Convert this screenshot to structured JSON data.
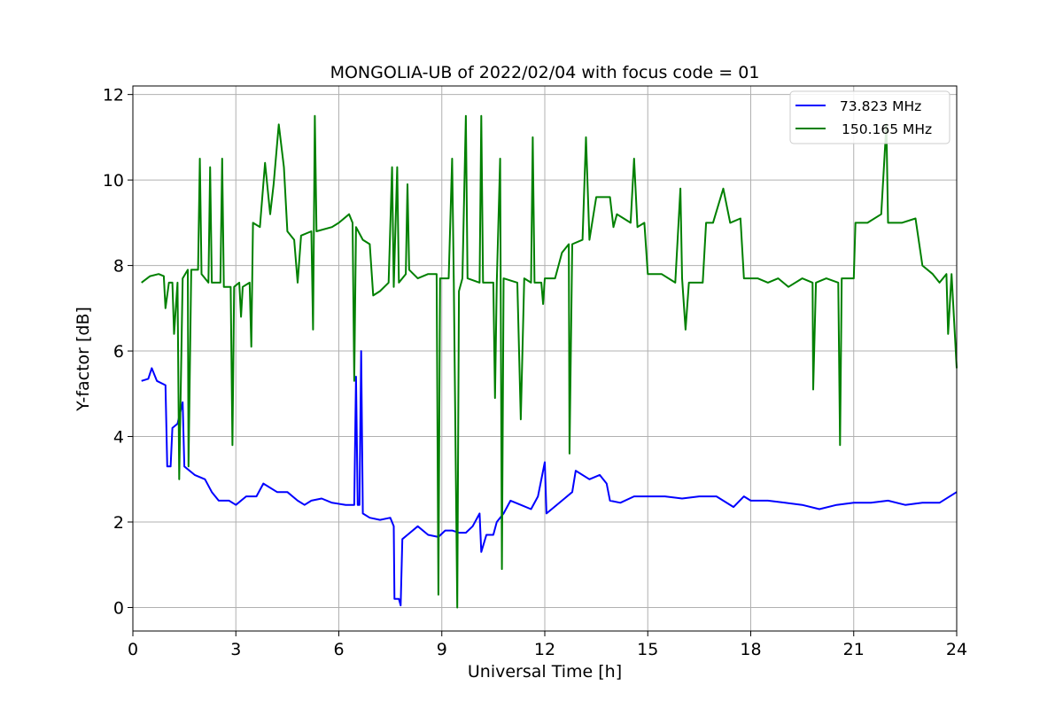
{
  "chart_data": {
    "type": "line",
    "title": "MONGOLIA-UB of 2022/02/04 with focus code = 01",
    "xlabel": "Universal Time [h]",
    "ylabel": "Y-factor [dB]",
    "xlim": [
      0,
      24
    ],
    "ylim": [
      -0.55,
      12.2
    ],
    "xticks": [
      0,
      3,
      6,
      9,
      12,
      15,
      18,
      21,
      24
    ],
    "yticks": [
      0,
      2,
      4,
      6,
      8,
      10,
      12
    ],
    "grid": true,
    "legend_position": "top-right",
    "series": [
      {
        "name": " 73.823 MHz",
        "color": "#0000ff",
        "points": [
          [
            0.25,
            5.3
          ],
          [
            0.45,
            5.35
          ],
          [
            0.55,
            5.6
          ],
          [
            0.7,
            5.3
          ],
          [
            0.95,
            5.2
          ],
          [
            1.0,
            3.3
          ],
          [
            1.1,
            3.3
          ],
          [
            1.15,
            4.2
          ],
          [
            1.3,
            4.3
          ],
          [
            1.45,
            4.8
          ],
          [
            1.5,
            3.3
          ],
          [
            1.8,
            3.1
          ],
          [
            2.1,
            3.0
          ],
          [
            2.3,
            2.7
          ],
          [
            2.5,
            2.5
          ],
          [
            2.8,
            2.5
          ],
          [
            3.0,
            2.4
          ],
          [
            3.3,
            2.6
          ],
          [
            3.6,
            2.6
          ],
          [
            3.8,
            2.9
          ],
          [
            4.2,
            2.7
          ],
          [
            4.5,
            2.7
          ],
          [
            4.8,
            2.5
          ],
          [
            5.0,
            2.4
          ],
          [
            5.2,
            2.5
          ],
          [
            5.5,
            2.55
          ],
          [
            5.8,
            2.45
          ],
          [
            6.2,
            2.4
          ],
          [
            6.45,
            2.4
          ],
          [
            6.5,
            5.4
          ],
          [
            6.55,
            2.4
          ],
          [
            6.6,
            2.4
          ],
          [
            6.65,
            6.0
          ],
          [
            6.7,
            2.2
          ],
          [
            6.9,
            2.1
          ],
          [
            7.2,
            2.05
          ],
          [
            7.5,
            2.1
          ],
          [
            7.6,
            1.9
          ],
          [
            7.62,
            0.2
          ],
          [
            7.75,
            0.2
          ],
          [
            7.8,
            0.05
          ],
          [
            7.85,
            1.6
          ],
          [
            8.0,
            1.7
          ],
          [
            8.3,
            1.9
          ],
          [
            8.6,
            1.7
          ],
          [
            8.9,
            1.65
          ],
          [
            9.1,
            1.8
          ],
          [
            9.3,
            1.8
          ],
          [
            9.5,
            1.75
          ],
          [
            9.7,
            1.75
          ],
          [
            9.9,
            1.9
          ],
          [
            10.1,
            2.2
          ],
          [
            10.15,
            1.3
          ],
          [
            10.3,
            1.7
          ],
          [
            10.5,
            1.7
          ],
          [
            10.6,
            2.0
          ],
          [
            10.8,
            2.2
          ],
          [
            11.0,
            2.5
          ],
          [
            11.3,
            2.4
          ],
          [
            11.6,
            2.3
          ],
          [
            11.8,
            2.6
          ],
          [
            12.0,
            3.4
          ],
          [
            12.05,
            2.2
          ],
          [
            12.2,
            2.3
          ],
          [
            12.5,
            2.5
          ],
          [
            12.8,
            2.7
          ],
          [
            12.9,
            3.2
          ],
          [
            13.3,
            3.0
          ],
          [
            13.6,
            3.1
          ],
          [
            13.8,
            2.9
          ],
          [
            13.9,
            2.5
          ],
          [
            14.2,
            2.45
          ],
          [
            14.6,
            2.6
          ],
          [
            15.0,
            2.6
          ],
          [
            15.5,
            2.6
          ],
          [
            16.0,
            2.55
          ],
          [
            16.5,
            2.6
          ],
          [
            17.0,
            2.6
          ],
          [
            17.5,
            2.35
          ],
          [
            17.8,
            2.6
          ],
          [
            18.0,
            2.5
          ],
          [
            18.5,
            2.5
          ],
          [
            19.0,
            2.45
          ],
          [
            19.5,
            2.4
          ],
          [
            20.0,
            2.3
          ],
          [
            20.5,
            2.4
          ],
          [
            21.0,
            2.45
          ],
          [
            21.5,
            2.45
          ],
          [
            22.0,
            2.5
          ],
          [
            22.5,
            2.4
          ],
          [
            23.0,
            2.45
          ],
          [
            23.5,
            2.45
          ],
          [
            24.0,
            2.7
          ]
        ]
      },
      {
        "name": "150.165 MHz",
        "color": "#008000",
        "points": [
          [
            0.25,
            7.6
          ],
          [
            0.5,
            7.75
          ],
          [
            0.75,
            7.8
          ],
          [
            0.9,
            7.75
          ],
          [
            0.95,
            7.0
          ],
          [
            1.05,
            7.6
          ],
          [
            1.15,
            7.6
          ],
          [
            1.2,
            6.4
          ],
          [
            1.3,
            7.6
          ],
          [
            1.35,
            3.0
          ],
          [
            1.45,
            7.7
          ],
          [
            1.6,
            7.9
          ],
          [
            1.62,
            3.3
          ],
          [
            1.7,
            7.9
          ],
          [
            1.9,
            7.9
          ],
          [
            1.95,
            10.5
          ],
          [
            2.0,
            7.8
          ],
          [
            2.2,
            7.6
          ],
          [
            2.25,
            10.3
          ],
          [
            2.3,
            7.6
          ],
          [
            2.55,
            7.6
          ],
          [
            2.6,
            10.5
          ],
          [
            2.65,
            7.5
          ],
          [
            2.85,
            7.5
          ],
          [
            2.9,
            3.8
          ],
          [
            2.95,
            7.5
          ],
          [
            3.1,
            7.6
          ],
          [
            3.15,
            6.8
          ],
          [
            3.2,
            7.5
          ],
          [
            3.4,
            7.6
          ],
          [
            3.45,
            6.1
          ],
          [
            3.5,
            9.0
          ],
          [
            3.7,
            8.9
          ],
          [
            3.85,
            10.4
          ],
          [
            4.0,
            9.2
          ],
          [
            4.1,
            9.9
          ],
          [
            4.25,
            11.3
          ],
          [
            4.4,
            10.3
          ],
          [
            4.5,
            8.8
          ],
          [
            4.7,
            8.6
          ],
          [
            4.8,
            7.6
          ],
          [
            4.9,
            8.7
          ],
          [
            5.2,
            8.8
          ],
          [
            5.25,
            6.5
          ],
          [
            5.3,
            11.5
          ],
          [
            5.35,
            8.8
          ],
          [
            5.8,
            8.9
          ],
          [
            6.0,
            9.0
          ],
          [
            6.3,
            9.2
          ],
          [
            6.4,
            9.0
          ],
          [
            6.45,
            5.3
          ],
          [
            6.5,
            8.9
          ],
          [
            6.7,
            8.6
          ],
          [
            6.9,
            8.5
          ],
          [
            7.0,
            7.3
          ],
          [
            7.2,
            7.4
          ],
          [
            7.45,
            7.6
          ],
          [
            7.55,
            10.3
          ],
          [
            7.6,
            7.5
          ],
          [
            7.7,
            10.3
          ],
          [
            7.75,
            7.6
          ],
          [
            7.95,
            7.8
          ],
          [
            8.0,
            9.9
          ],
          [
            8.05,
            7.9
          ],
          [
            8.3,
            7.7
          ],
          [
            8.6,
            7.8
          ],
          [
            8.85,
            7.8
          ],
          [
            8.9,
            0.3
          ],
          [
            8.95,
            7.7
          ],
          [
            9.2,
            7.7
          ],
          [
            9.3,
            10.5
          ],
          [
            9.35,
            7.6
          ],
          [
            9.45,
            0.0
          ],
          [
            9.5,
            7.4
          ],
          [
            9.6,
            7.7
          ],
          [
            9.7,
            11.5
          ],
          [
            9.75,
            7.7
          ],
          [
            10.1,
            7.6
          ],
          [
            10.15,
            11.5
          ],
          [
            10.2,
            7.6
          ],
          [
            10.5,
            7.6
          ],
          [
            10.55,
            4.9
          ],
          [
            10.6,
            7.6
          ],
          [
            10.7,
            10.5
          ],
          [
            10.75,
            0.9
          ],
          [
            10.8,
            7.7
          ],
          [
            11.2,
            7.6
          ],
          [
            11.3,
            4.4
          ],
          [
            11.4,
            7.7
          ],
          [
            11.6,
            7.6
          ],
          [
            11.65,
            11.0
          ],
          [
            11.7,
            7.6
          ],
          [
            11.9,
            7.6
          ],
          [
            11.95,
            7.1
          ],
          [
            12.0,
            7.7
          ],
          [
            12.3,
            7.7
          ],
          [
            12.5,
            8.3
          ],
          [
            12.7,
            8.5
          ],
          [
            12.72,
            3.6
          ],
          [
            12.8,
            8.5
          ],
          [
            13.1,
            8.6
          ],
          [
            13.2,
            11.0
          ],
          [
            13.3,
            8.6
          ],
          [
            13.5,
            9.6
          ],
          [
            13.9,
            9.6
          ],
          [
            14.0,
            8.9
          ],
          [
            14.1,
            9.2
          ],
          [
            14.3,
            9.1
          ],
          [
            14.5,
            9.0
          ],
          [
            14.6,
            10.5
          ],
          [
            14.7,
            8.9
          ],
          [
            14.9,
            9.0
          ],
          [
            15.0,
            7.8
          ],
          [
            15.4,
            7.8
          ],
          [
            15.8,
            7.6
          ],
          [
            15.95,
            9.8
          ],
          [
            16.0,
            7.7
          ],
          [
            16.1,
            6.5
          ],
          [
            16.2,
            7.6
          ],
          [
            16.6,
            7.6
          ],
          [
            16.7,
            9.0
          ],
          [
            16.9,
            9.0
          ],
          [
            17.2,
            9.8
          ],
          [
            17.4,
            9.0
          ],
          [
            17.7,
            9.1
          ],
          [
            17.8,
            7.7
          ],
          [
            18.2,
            7.7
          ],
          [
            18.5,
            7.6
          ],
          [
            18.8,
            7.7
          ],
          [
            19.1,
            7.5
          ],
          [
            19.5,
            7.7
          ],
          [
            19.8,
            7.6
          ],
          [
            19.82,
            5.1
          ],
          [
            19.9,
            7.6
          ],
          [
            20.2,
            7.7
          ],
          [
            20.55,
            7.6
          ],
          [
            20.6,
            3.8
          ],
          [
            20.65,
            7.7
          ],
          [
            21.0,
            7.7
          ],
          [
            21.05,
            9.0
          ],
          [
            21.4,
            9.0
          ],
          [
            21.8,
            9.2
          ],
          [
            21.95,
            11.3
          ],
          [
            22.0,
            9.0
          ],
          [
            22.4,
            9.0
          ],
          [
            22.8,
            9.1
          ],
          [
            23.0,
            8.0
          ],
          [
            23.3,
            7.8
          ],
          [
            23.5,
            7.6
          ],
          [
            23.7,
            7.8
          ],
          [
            23.75,
            6.4
          ],
          [
            23.85,
            7.8
          ],
          [
            24.0,
            5.6
          ]
        ]
      }
    ]
  }
}
